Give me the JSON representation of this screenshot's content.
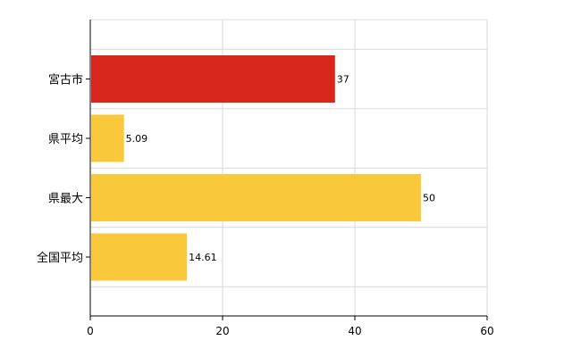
{
  "chart_data": {
    "type": "bar",
    "orientation": "horizontal",
    "categories": [
      "宮古市",
      "県平均",
      "県最大",
      "全国平均"
    ],
    "values": [
      37,
      5.09,
      50,
      14.61
    ],
    "value_labels": [
      "37",
      "5.09",
      "50",
      "14.61"
    ],
    "bar_colors": [
      "#d7261b",
      "#f9c93b",
      "#f9c93b",
      "#f9c93b"
    ],
    "xlim": [
      0,
      60
    ],
    "x_ticks": [
      0,
      20,
      40,
      60
    ],
    "x_tick_labels": [
      "0",
      "20",
      "40",
      "60"
    ],
    "grid": true,
    "title": "",
    "xlabel": "",
    "ylabel": ""
  }
}
